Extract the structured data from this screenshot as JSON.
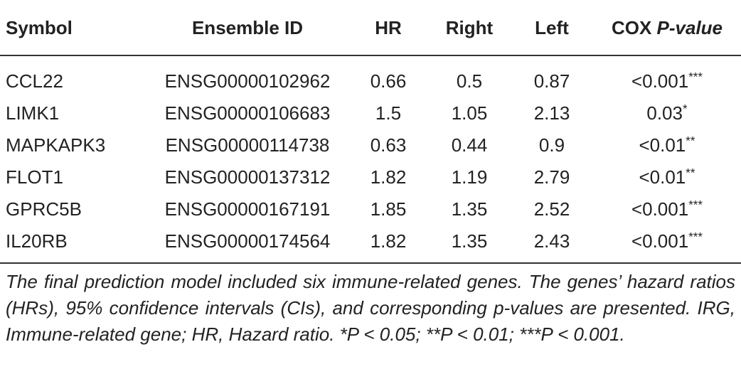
{
  "table": {
    "headers": {
      "symbol": "Symbol",
      "ensemble": "Ensemble ID",
      "hr": "HR",
      "right": "Right",
      "left": "Left",
      "cox_prefix": "COX",
      "cox_italic": "P-value"
    },
    "rows": [
      {
        "symbol": "CCL22",
        "ensemble": "ENSG00000102962",
        "hr": "0.66",
        "right": "0.5",
        "left": "0.87",
        "p": "<0.001",
        "stars": "***"
      },
      {
        "symbol": "LIMK1",
        "ensemble": "ENSG00000106683",
        "hr": "1.5",
        "right": "1.05",
        "left": "2.13",
        "p": "0.03",
        "stars": "*"
      },
      {
        "symbol": "MAPKAPK3",
        "ensemble": "ENSG00000114738",
        "hr": "0.63",
        "right": "0.44",
        "left": "0.9",
        "p": "<0.01",
        "stars": "**"
      },
      {
        "symbol": "FLOT1",
        "ensemble": "ENSG00000137312",
        "hr": "1.82",
        "right": "1.19",
        "left": "2.79",
        "p": "<0.01",
        "stars": "**"
      },
      {
        "symbol": "GPRC5B",
        "ensemble": "ENSG00000167191",
        "hr": "1.85",
        "right": "1.35",
        "left": "2.52",
        "p": "<0.001",
        "stars": "***"
      },
      {
        "symbol": "IL20RB",
        "ensemble": "ENSG00000174564",
        "hr": "1.82",
        "right": "1.35",
        "left": "2.43",
        "p": "<0.001",
        "stars": "***"
      }
    ]
  },
  "footnote": "The final prediction model included six immune-related genes. The genes’ hazard ratios (HRs), 95% confidence intervals (CIs), and corresponding p-values are presented. IRG, Immune-related gene; HR, Hazard ratio. *P < 0.05; **P < 0.01; ***P < 0.001."
}
